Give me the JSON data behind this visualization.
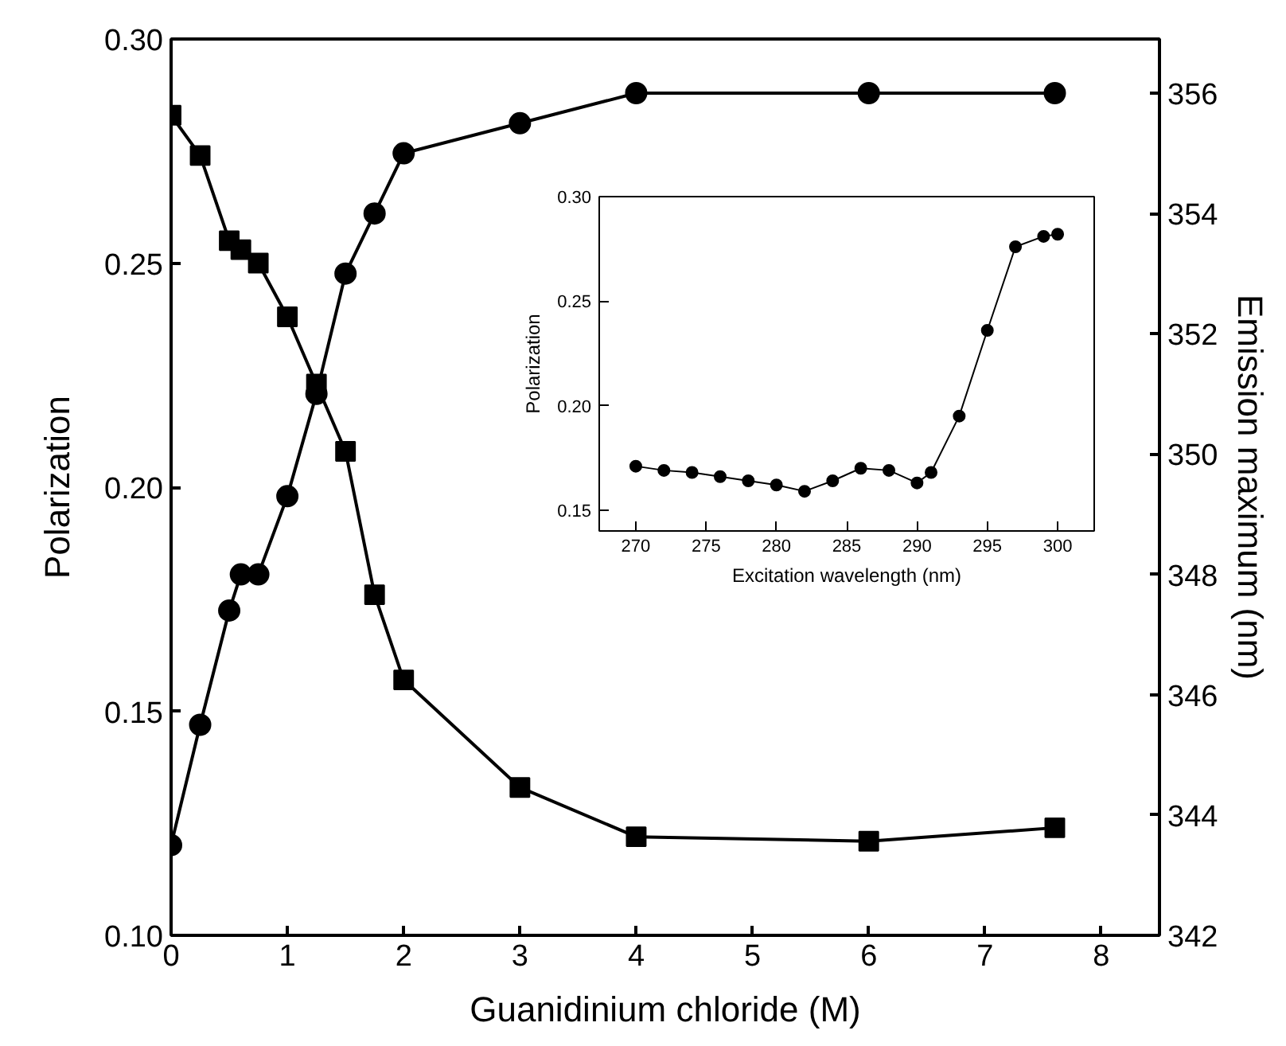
{
  "chart_data": [
    {
      "type": "line",
      "xlabel": "Guanidinium chloride (M)",
      "ylabel": "Polarization",
      "y2label": "Emission maximum (nm)",
      "x": [
        0,
        0.25,
        0.5,
        0.6,
        0.75,
        1,
        1.25,
        1.5,
        1.75,
        2,
        3,
        4,
        6,
        7.6
      ],
      "series": [
        {
          "color": "#000000",
          "marker": "square",
          "values": [
            0.283,
            0.274,
            0.255,
            0.253,
            0.25,
            0.238,
            0.223,
            0.208,
            0.176,
            0.157,
            0.133,
            0.122,
            0.121,
            0.124
          ]
        },
        {
          "color": "#000000",
          "marker": "circle",
          "axis": "y2",
          "values": [
            343.5,
            345.5,
            347.4,
            348.0,
            348.0,
            349.3,
            351.0,
            353.0,
            354.0,
            355.0,
            355.5,
            356.0,
            356.0,
            356.0
          ]
        }
      ],
      "xlim": [
        0,
        8.5
      ],
      "xticks": [
        0,
        1,
        2,
        3,
        4,
        5,
        6,
        7,
        8
      ],
      "ylim": [
        0.1,
        0.3
      ],
      "yticks": [
        {
          "value": 0.1,
          "label": "0.10"
        },
        {
          "value": 0.15,
          "label": "0.15"
        },
        {
          "value": 0.2,
          "label": "0.20"
        },
        {
          "value": 0.25,
          "label": "0.25"
        },
        {
          "value": 0.3,
          "label": "0.30"
        }
      ],
      "y2lim": [
        342,
        356.9
      ],
      "y2ticks": [
        342,
        344,
        346,
        348,
        350,
        352,
        354,
        356
      ],
      "grid": false,
      "line_style": "solid"
    },
    {
      "type": "line",
      "xlabel": "Excitation wavelength (nm)",
      "ylabel": "Polarization",
      "x": [
        270,
        272,
        274,
        276,
        278,
        280,
        282,
        284,
        286,
        288,
        290,
        291,
        293,
        295,
        297,
        299,
        300
      ],
      "series": [
        {
          "color": "#000000",
          "marker": "circle",
          "values": [
            0.171,
            0.169,
            0.168,
            0.166,
            0.164,
            0.162,
            0.159,
            0.164,
            0.17,
            0.169,
            0.163,
            0.168,
            0.195,
            0.236,
            0.276,
            0.281,
            0.282
          ]
        }
      ],
      "xlim": [
        267.4,
        302.6
      ],
      "xticks": [
        270,
        275,
        280,
        285,
        290,
        295,
        300
      ],
      "ylim": [
        0.14,
        0.3
      ],
      "yticks": [
        {
          "value": 0.15,
          "label": "0.15"
        },
        {
          "value": 0.2,
          "label": "0.20"
        },
        {
          "value": 0.25,
          "label": "0.25"
        },
        {
          "value": 0.3,
          "label": "0.30"
        }
      ],
      "grid": false,
      "line_style": "solid"
    }
  ]
}
